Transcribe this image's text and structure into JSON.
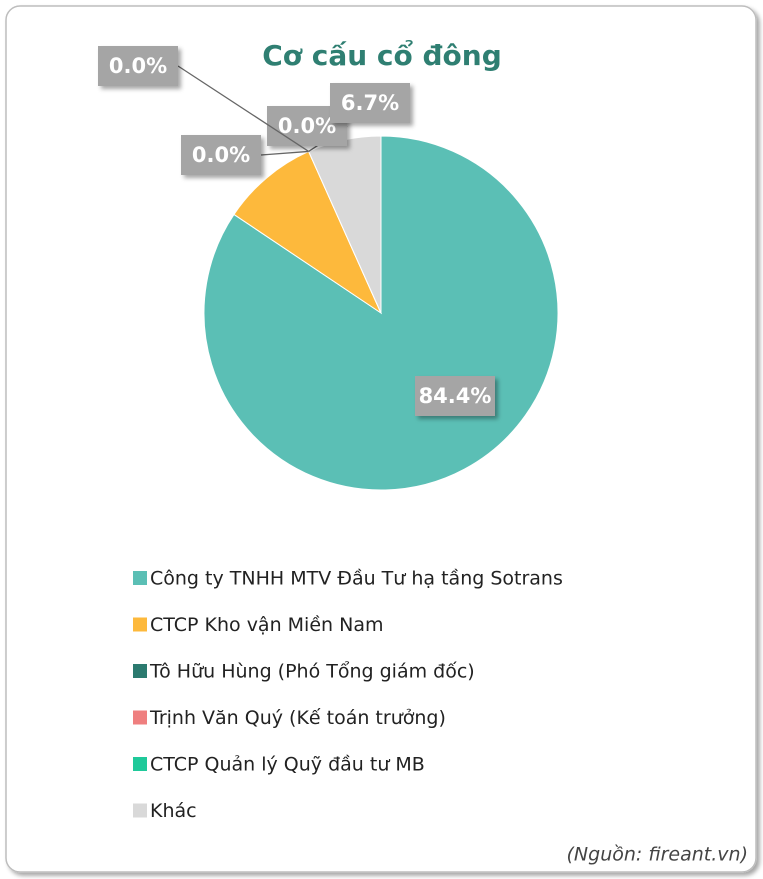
{
  "chart_data": {
    "type": "pie",
    "title": "Cơ cấu cổ đông",
    "categories": [
      "Công ty TNHH MTV Đầu Tư hạ tầng Sotrans",
      "CTCP Kho vận Miền Nam",
      "Tô Hữu Hùng (Phó Tổng giám đốc)",
      "Trịnh Văn Quý (Kế toán trưởng)",
      "CTCP Quản lý Quỹ đầu tư MB",
      "Khác"
    ],
    "values": [
      84.4,
      8.9,
      0.0,
      0.0,
      0.0,
      6.7
    ],
    "value_labels": [
      "84.4%",
      null,
      "0.0%",
      "0.0%",
      "0.0%",
      "6.7%"
    ],
    "colors": [
      "#5bbfb5",
      "#fdb93c",
      "#2b7a6f",
      "#ef7f7f",
      "#1fc99a",
      "#d9d9d9"
    ],
    "source": "(Nguồn: fireant.vn)"
  }
}
